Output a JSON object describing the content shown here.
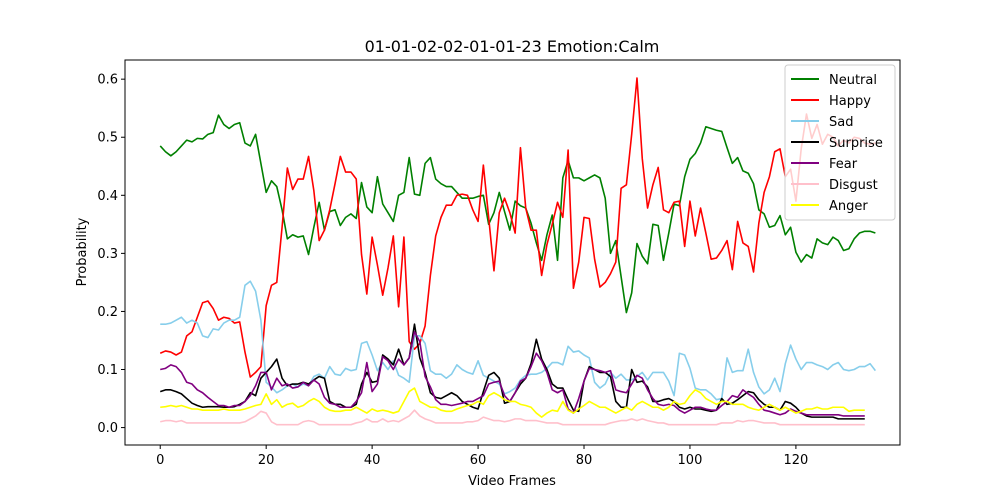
{
  "chart_data": {
    "type": "line",
    "title": "01-01-02-02-01-01-23 Emotion:Calm",
    "xlabel": "Video Frames",
    "ylabel": "Probability",
    "xlim": [
      -6.65,
      139.65
    ],
    "ylim": [
      -0.03,
      0.633
    ],
    "xticks": [
      0,
      20,
      40,
      60,
      80,
      100,
      120
    ],
    "yticks": [
      0.0,
      0.1,
      0.2,
      0.3,
      0.4,
      0.5,
      0.6
    ],
    "xtick_labels": [
      "0",
      "20",
      "40",
      "60",
      "80",
      "100",
      "120"
    ],
    "ytick_labels": [
      "0.0",
      "0.1",
      "0.2",
      "0.3",
      "0.4",
      "0.5",
      "0.6"
    ],
    "grid": false,
    "legend_position": "upper-right",
    "series": [
      {
        "name": "Neutral",
        "color": "#008000",
        "values": [
          0.485,
          0.475,
          0.468,
          0.475,
          0.485,
          0.495,
          0.492,
          0.498,
          0.497,
          0.505,
          0.508,
          0.538,
          0.522,
          0.515,
          0.522,
          0.525,
          0.49,
          0.485,
          0.505,
          0.455,
          0.405,
          0.425,
          0.415,
          0.375,
          0.325,
          0.332,
          0.328,
          0.33,
          0.298,
          0.345,
          0.388,
          0.34,
          0.372,
          0.375,
          0.348,
          0.362,
          0.368,
          0.36,
          0.422,
          0.38,
          0.37,
          0.432,
          0.385,
          0.37,
          0.355,
          0.4,
          0.405,
          0.465,
          0.402,
          0.4,
          0.455,
          0.465,
          0.428,
          0.42,
          0.415,
          0.415,
          0.405,
          0.395,
          0.395,
          0.395,
          0.398,
          0.4,
          0.35,
          0.37,
          0.405,
          0.372,
          0.34,
          0.39,
          0.382,
          0.378,
          0.352,
          0.318,
          0.288,
          0.332,
          0.366,
          0.288,
          0.43,
          0.46,
          0.43,
          0.43,
          0.425,
          0.43,
          0.435,
          0.43,
          0.395,
          0.3,
          0.322,
          0.26,
          0.198,
          0.232,
          0.317,
          0.295,
          0.282,
          0.35,
          0.348,
          0.288,
          0.335,
          0.385,
          0.382,
          0.432,
          0.462,
          0.472,
          0.49,
          0.518,
          0.515,
          0.512,
          0.51,
          0.482,
          0.455,
          0.465,
          0.442,
          0.438,
          0.42,
          0.375,
          0.368,
          0.345,
          0.348,
          0.365,
          0.332,
          0.345,
          0.302,
          0.285,
          0.298,
          0.292,
          0.325,
          0.318,
          0.315,
          0.328,
          0.322,
          0.305,
          0.308,
          0.325,
          0.335,
          0.338,
          0.338,
          0.335
        ]
      },
      {
        "name": "Happy",
        "color": "#ff0000",
        "values": [
          0.128,
          0.132,
          0.13,
          0.125,
          0.13,
          0.158,
          0.165,
          0.19,
          0.215,
          0.218,
          0.205,
          0.185,
          0.19,
          0.188,
          0.18,
          0.182,
          0.13,
          0.087,
          0.095,
          0.105,
          0.21,
          0.245,
          0.25,
          0.345,
          0.447,
          0.41,
          0.428,
          0.428,
          0.467,
          0.408,
          0.322,
          0.34,
          0.375,
          0.42,
          0.467,
          0.44,
          0.44,
          0.428,
          0.298,
          0.23,
          0.328,
          0.28,
          0.228,
          0.275,
          0.33,
          0.208,
          0.328,
          0.148,
          0.135,
          0.145,
          0.175,
          0.262,
          0.33,
          0.362,
          0.383,
          0.383,
          0.4,
          0.402,
          0.4,
          0.375,
          0.355,
          0.452,
          0.362,
          0.27,
          0.37,
          0.395,
          0.37,
          0.335,
          0.482,
          0.378,
          0.34,
          0.34,
          0.262,
          0.315,
          0.35,
          0.388,
          0.362,
          0.478,
          0.24,
          0.285,
          0.362,
          0.36,
          0.29,
          0.242,
          0.25,
          0.265,
          0.285,
          0.412,
          0.418,
          0.505,
          0.602,
          0.463,
          0.378,
          0.418,
          0.448,
          0.375,
          0.37,
          0.388,
          0.39,
          0.312,
          0.39,
          0.33,
          0.378,
          0.335,
          0.29,
          0.292,
          0.305,
          0.322,
          0.272,
          0.355,
          0.318,
          0.312,
          0.268,
          0.352,
          0.405,
          0.432,
          0.475,
          0.48,
          0.432,
          0.445,
          0.39,
          0.48,
          0.54,
          0.498,
          0.522,
          0.488,
          0.505,
          0.5,
          0.485,
          0.495,
          0.49,
          0.5,
          0.498,
          0.49,
          0.488,
          0.49
        ]
      },
      {
        "name": "Sad",
        "color": "#87ceeb",
        "values": [
          0.178,
          0.178,
          0.18,
          0.185,
          0.19,
          0.18,
          0.185,
          0.18,
          0.158,
          0.155,
          0.17,
          0.168,
          0.18,
          0.185,
          0.185,
          0.19,
          0.245,
          0.252,
          0.235,
          0.185,
          0.078,
          0.07,
          0.06,
          0.065,
          0.072,
          0.075,
          0.07,
          0.075,
          0.072,
          0.088,
          0.092,
          0.085,
          0.105,
          0.092,
          0.09,
          0.102,
          0.098,
          0.1,
          0.145,
          0.148,
          0.125,
          0.098,
          0.112,
          0.1,
          0.115,
          0.09,
          0.085,
          0.078,
          0.158,
          0.158,
          0.145,
          0.098,
          0.092,
          0.092,
          0.085,
          0.092,
          0.108,
          0.1,
          0.095,
          0.092,
          0.115,
          0.09,
          0.085,
          0.08,
          0.075,
          0.058,
          0.062,
          0.068,
          0.082,
          0.09,
          0.092,
          0.092,
          0.095,
          0.102,
          0.112,
          0.112,
          0.108,
          0.14,
          0.13,
          0.132,
          0.125,
          0.12,
          0.078,
          0.068,
          0.075,
          0.095,
          0.085,
          0.092,
          0.082,
          0.082,
          0.088,
          0.095,
          0.082,
          0.095,
          0.095,
          0.095,
          0.08,
          0.055,
          0.128,
          0.125,
          0.102,
          0.068,
          0.065,
          0.065,
          0.058,
          0.048,
          0.05,
          0.12,
          0.095,
          0.098,
          0.098,
          0.135,
          0.095,
          0.07,
          0.058,
          0.065,
          0.085,
          0.062,
          0.11,
          0.142,
          0.118,
          0.1,
          0.112,
          0.112,
          0.108,
          0.105,
          0.1,
          0.108,
          0.112,
          0.1,
          0.098,
          0.1,
          0.105,
          0.105,
          0.11,
          0.098
        ]
      },
      {
        "name": "Surprise",
        "color": "#000000",
        "values": [
          0.062,
          0.065,
          0.065,
          0.062,
          0.058,
          0.05,
          0.042,
          0.038,
          0.035,
          0.036,
          0.036,
          0.036,
          0.035,
          0.035,
          0.036,
          0.04,
          0.045,
          0.06,
          0.055,
          0.085,
          0.095,
          0.105,
          0.118,
          0.085,
          0.072,
          0.075,
          0.075,
          0.078,
          0.075,
          0.082,
          0.088,
          0.085,
          0.045,
          0.04,
          0.04,
          0.035,
          0.035,
          0.04,
          0.075,
          0.095,
          0.078,
          0.08,
          0.125,
          0.118,
          0.108,
          0.135,
          0.108,
          0.12,
          0.178,
          0.12,
          0.095,
          0.06,
          0.052,
          0.05,
          0.055,
          0.06,
          0.055,
          0.045,
          0.04,
          0.035,
          0.032,
          0.062,
          0.09,
          0.095,
          0.085,
          0.042,
          0.045,
          0.06,
          0.075,
          0.085,
          0.11,
          0.152,
          0.118,
          0.1,
          0.075,
          0.068,
          0.068,
          0.048,
          0.03,
          0.028,
          0.08,
          0.105,
          0.1,
          0.095,
          0.095,
          0.088,
          0.045,
          0.035,
          0.035,
          0.1,
          0.078,
          0.08,
          0.07,
          0.045,
          0.045,
          0.048,
          0.05,
          0.045,
          0.035,
          0.032,
          0.035,
          0.032,
          0.032,
          0.03,
          0.028,
          0.03,
          0.05,
          0.04,
          0.042,
          0.048,
          0.055,
          0.062,
          0.06,
          0.048,
          0.04,
          0.035,
          0.035,
          0.03,
          0.045,
          0.042,
          0.035,
          0.025,
          0.02,
          0.018,
          0.018,
          0.018,
          0.018,
          0.018,
          0.015,
          0.015,
          0.015,
          0.015,
          0.015,
          0.015
        ]
      },
      {
        "name": "Fear",
        "color": "#800080",
        "values": [
          0.1,
          0.102,
          0.108,
          0.105,
          0.095,
          0.078,
          0.075,
          0.065,
          0.06,
          0.052,
          0.045,
          0.038,
          0.038,
          0.035,
          0.038,
          0.038,
          0.045,
          0.055,
          0.072,
          0.095,
          0.095,
          0.065,
          0.085,
          0.072,
          0.075,
          0.068,
          0.07,
          0.078,
          0.072,
          0.082,
          0.075,
          0.052,
          0.042,
          0.04,
          0.035,
          0.035,
          0.035,
          0.045,
          0.06,
          0.112,
          0.062,
          0.075,
          0.122,
          0.115,
          0.1,
          0.118,
          0.108,
          0.12,
          0.165,
          0.148,
          0.088,
          0.07,
          0.048,
          0.04,
          0.04,
          0.038,
          0.04,
          0.042,
          0.045,
          0.045,
          0.05,
          0.055,
          0.075,
          0.078,
          0.08,
          0.055,
          0.045,
          0.06,
          0.08,
          0.085,
          0.105,
          0.128,
          0.115,
          0.095,
          0.065,
          0.06,
          0.065,
          0.032,
          0.025,
          0.05,
          0.08,
          0.102,
          0.1,
          0.098,
          0.095,
          0.098,
          0.065,
          0.062,
          0.06,
          0.075,
          0.09,
          0.085,
          0.065,
          0.05,
          0.04,
          0.038,
          0.04,
          0.038,
          0.03,
          0.025,
          0.03,
          0.035,
          0.035,
          0.032,
          0.03,
          0.03,
          0.038,
          0.045,
          0.055,
          0.052,
          0.065,
          0.058,
          0.052,
          0.04,
          0.03,
          0.028,
          0.025,
          0.022,
          0.025,
          0.032,
          0.028,
          0.025,
          0.022,
          0.022,
          0.022,
          0.022,
          0.022,
          0.022,
          0.022,
          0.02,
          0.02,
          0.02,
          0.02,
          0.02
        ]
      },
      {
        "name": "Disgust",
        "color": "#ffc0cb",
        "values": [
          0.01,
          0.012,
          0.012,
          0.01,
          0.012,
          0.008,
          0.008,
          0.008,
          0.008,
          0.008,
          0.008,
          0.008,
          0.008,
          0.008,
          0.008,
          0.008,
          0.01,
          0.015,
          0.02,
          0.028,
          0.025,
          0.01,
          0.005,
          0.005,
          0.005,
          0.005,
          0.005,
          0.01,
          0.012,
          0.01,
          0.005,
          0.005,
          0.005,
          0.005,
          0.005,
          0.005,
          0.005,
          0.008,
          0.01,
          0.015,
          0.01,
          0.01,
          0.015,
          0.01,
          0.012,
          0.01,
          0.015,
          0.02,
          0.03,
          0.02,
          0.015,
          0.012,
          0.008,
          0.008,
          0.008,
          0.008,
          0.008,
          0.008,
          0.01,
          0.01,
          0.012,
          0.018,
          0.015,
          0.012,
          0.012,
          0.01,
          0.012,
          0.015,
          0.015,
          0.012,
          0.012,
          0.012,
          0.01,
          0.008,
          0.008,
          0.008,
          0.005,
          0.005,
          0.005,
          0.005,
          0.005,
          0.005,
          0.005,
          0.005,
          0.005,
          0.008,
          0.01,
          0.012,
          0.012,
          0.015,
          0.012,
          0.015,
          0.012,
          0.01,
          0.008,
          0.008,
          0.005,
          0.005,
          0.005,
          0.005,
          0.005,
          0.005,
          0.005,
          0.005,
          0.005,
          0.005,
          0.008,
          0.008,
          0.008,
          0.012,
          0.01,
          0.012,
          0.012,
          0.01,
          0.008,
          0.008,
          0.008,
          0.005,
          0.005,
          0.005,
          0.005,
          0.005,
          0.005,
          0.005,
          0.005,
          0.005,
          0.005,
          0.005,
          0.005,
          0.005,
          0.005,
          0.005,
          0.005,
          0.005
        ]
      },
      {
        "name": "Anger",
        "color": "#ffff00",
        "values": [
          0.035,
          0.036,
          0.038,
          0.036,
          0.038,
          0.035,
          0.032,
          0.032,
          0.03,
          0.03,
          0.03,
          0.03,
          0.032,
          0.03,
          0.03,
          0.03,
          0.032,
          0.035,
          0.038,
          0.04,
          0.058,
          0.04,
          0.048,
          0.035,
          0.04,
          0.042,
          0.035,
          0.038,
          0.045,
          0.05,
          0.045,
          0.035,
          0.03,
          0.028,
          0.028,
          0.03,
          0.03,
          0.035,
          0.03,
          0.025,
          0.032,
          0.028,
          0.03,
          0.028,
          0.025,
          0.028,
          0.045,
          0.062,
          0.068,
          0.045,
          0.04,
          0.035,
          0.035,
          0.03,
          0.028,
          0.028,
          0.032,
          0.035,
          0.038,
          0.04,
          0.045,
          0.04,
          0.055,
          0.06,
          0.055,
          0.048,
          0.045,
          0.045,
          0.04,
          0.038,
          0.035,
          0.025,
          0.018,
          0.025,
          0.03,
          0.028,
          0.045,
          0.03,
          0.025,
          0.032,
          0.038,
          0.045,
          0.04,
          0.035,
          0.035,
          0.03,
          0.025,
          0.03,
          0.035,
          0.03,
          0.04,
          0.045,
          0.04,
          0.035,
          0.035,
          0.03,
          0.035,
          0.045,
          0.04,
          0.042,
          0.055,
          0.065,
          0.06,
          0.05,
          0.045,
          0.04,
          0.045,
          0.045,
          0.04,
          0.04,
          0.04,
          0.035,
          0.032,
          0.03,
          0.035,
          0.04,
          0.035,
          0.03,
          0.035,
          0.03,
          0.025,
          0.028,
          0.032,
          0.032,
          0.035,
          0.032,
          0.032,
          0.035,
          0.035,
          0.035,
          0.028,
          0.03,
          0.03,
          0.03
        ]
      }
    ]
  }
}
